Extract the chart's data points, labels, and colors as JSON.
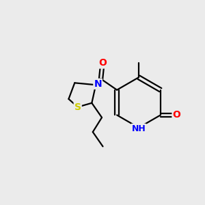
{
  "background_color": "#ebebeb",
  "atom_colors": {
    "O": "#ff0000",
    "N": "#0000ff",
    "S": "#cccc00",
    "C": "#000000",
    "H": "#555555"
  },
  "bond_color": "#000000",
  "bond_width": 1.6,
  "figsize": [
    3.0,
    3.0
  ],
  "dpi": 100,
  "xlim": [
    0,
    10
  ],
  "ylim": [
    0,
    10
  ]
}
